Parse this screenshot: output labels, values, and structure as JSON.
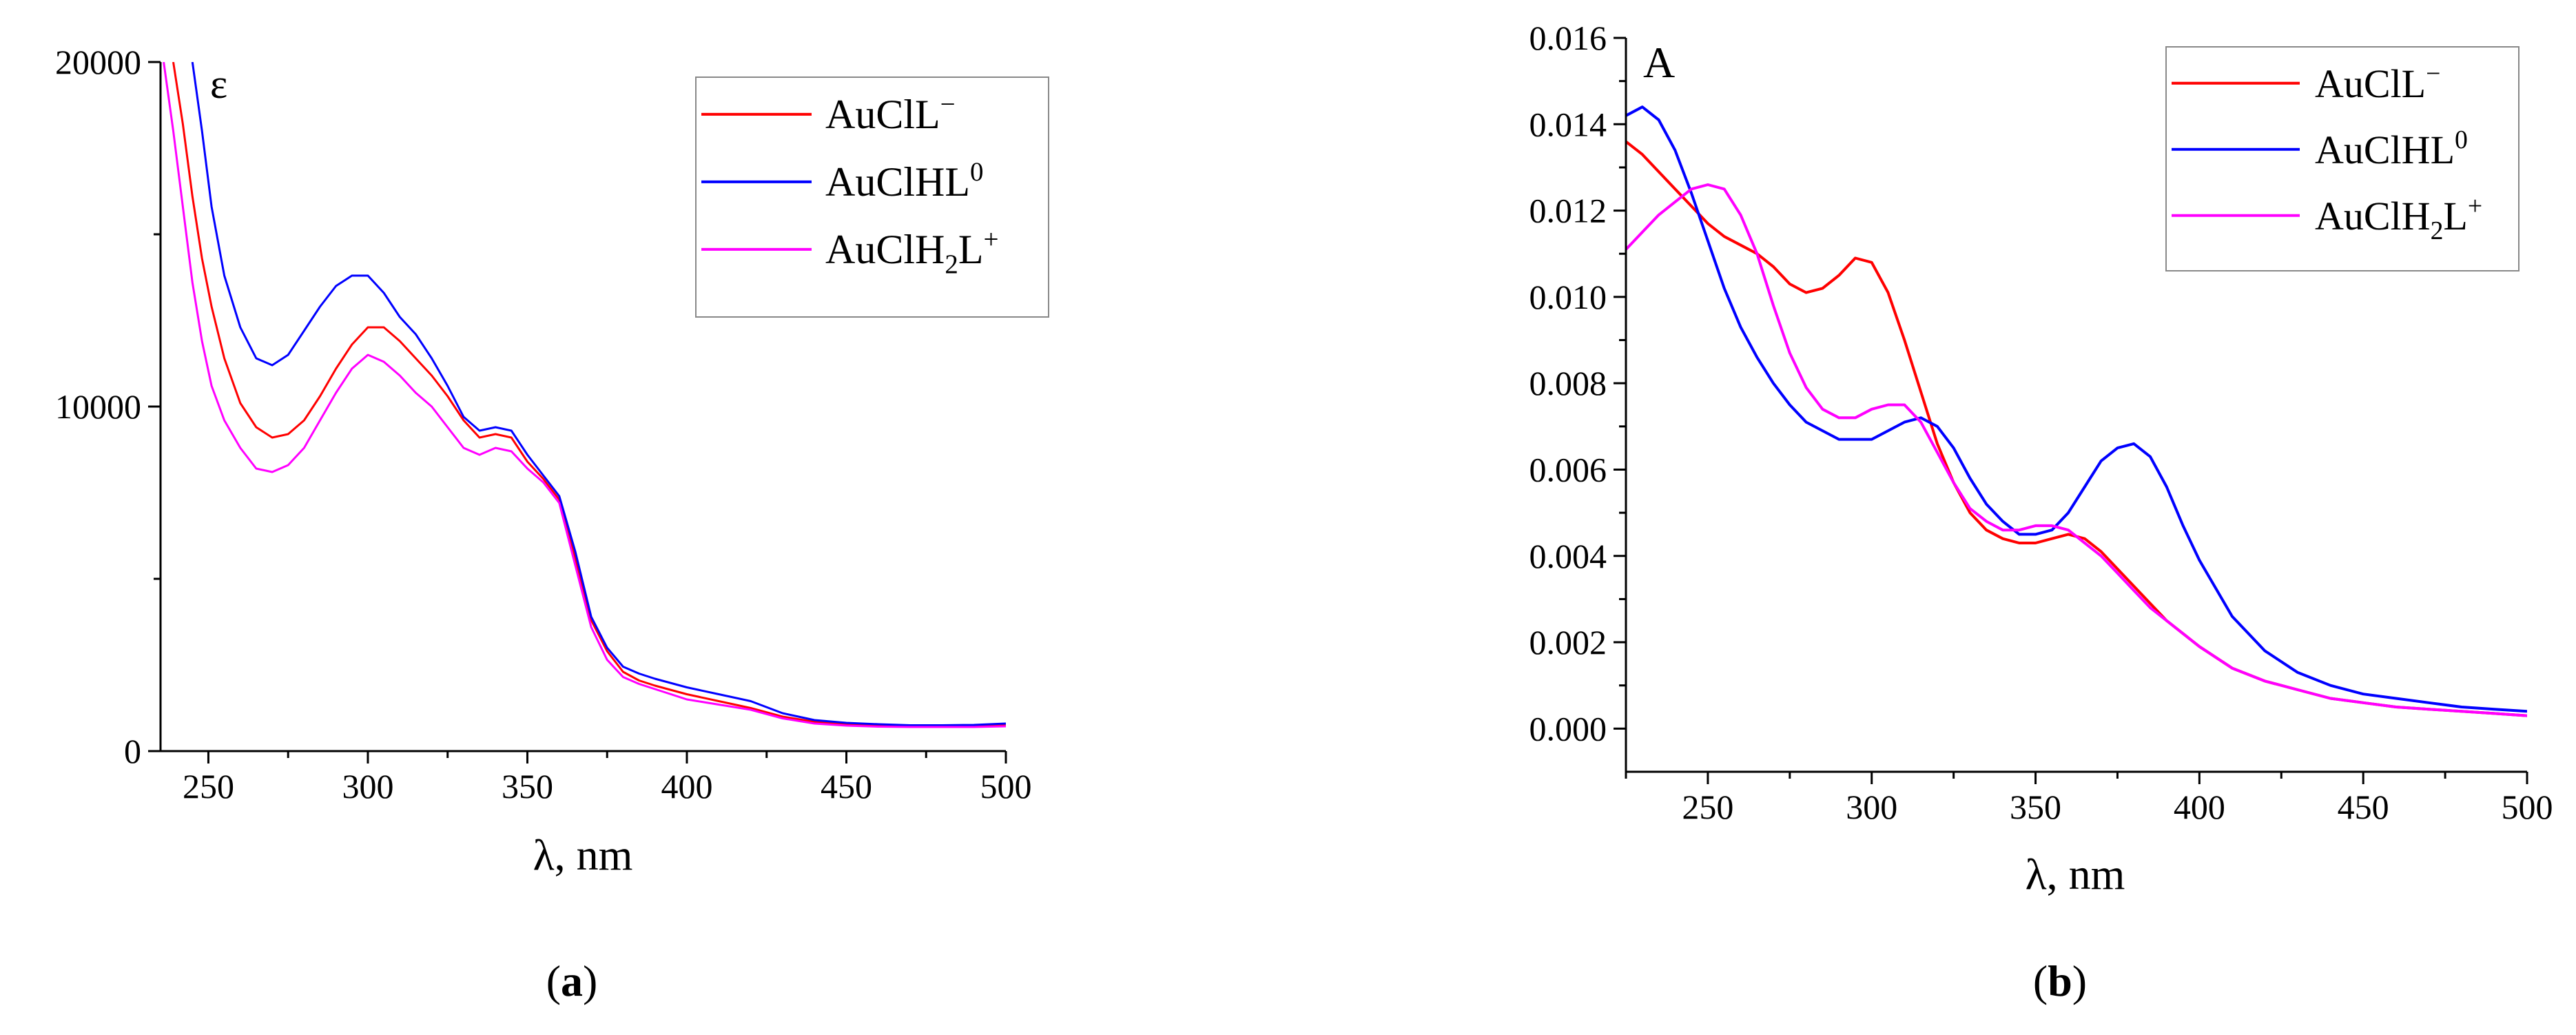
{
  "colors": {
    "red": "#ff0000",
    "blue": "#0000ff",
    "magenta": "#ff00ff"
  },
  "panel_labels": {
    "a": {
      "open": "(",
      "letter": "a",
      "close": ")"
    },
    "b": {
      "open": "(",
      "letter": "b",
      "close": ")"
    }
  },
  "chart_data": [
    {
      "id": "a",
      "type": "line",
      "ylabel": "ε",
      "xlabel": "λ, nm",
      "xlim": [
        235,
        500
      ],
      "ylim": [
        0,
        20000
      ],
      "xticks": [
        250,
        300,
        350,
        400,
        450,
        500
      ],
      "xtick_labels": [
        "250",
        "300",
        "350",
        "400",
        "450",
        "500"
      ],
      "yticks": [
        0,
        10000,
        20000
      ],
      "ytick_labels": [
        "0",
        "10000",
        "20000"
      ],
      "y_minor_ticks": [
        5000,
        15000
      ],
      "legend_position": "top-right",
      "series": [
        {
          "name": "AuClL⁻",
          "name_base": "AuClL",
          "name_sub": "",
          "name_end": "",
          "name_sup": "−",
          "color": "#ff0000",
          "x": [
            239,
            242,
            245,
            248,
            251,
            255,
            260,
            265,
            270,
            275,
            280,
            285,
            290,
            295,
            300,
            305,
            310,
            315,
            320,
            325,
            330,
            335,
            340,
            345,
            350,
            355,
            360,
            365,
            370,
            375,
            380,
            385,
            390,
            400,
            410,
            420,
            430,
            440,
            450,
            460,
            470,
            480,
            490,
            500
          ],
          "y": [
            20000,
            18200,
            16100,
            14300,
            12900,
            11400,
            10100,
            9400,
            9100,
            9200,
            9600,
            10300,
            11100,
            11800,
            12300,
            12300,
            11900,
            11400,
            10900,
            10300,
            9600,
            9100,
            9200,
            9100,
            8400,
            7900,
            7300,
            5600,
            3800,
            2900,
            2300,
            2050,
            1900,
            1650,
            1450,
            1250,
            1000,
            850,
            780,
            750,
            730,
            730,
            730,
            750
          ]
        },
        {
          "name": "AuClHL⁰",
          "name_base": "AuClHL",
          "name_sub": "",
          "name_end": "",
          "name_sup": "0",
          "color": "#0000ff",
          "x": [
            245,
            248,
            251,
            255,
            260,
            265,
            270,
            275,
            280,
            285,
            290,
            295,
            300,
            305,
            310,
            315,
            320,
            325,
            330,
            335,
            340,
            345,
            350,
            355,
            360,
            365,
            370,
            375,
            380,
            385,
            390,
            400,
            410,
            420,
            430,
            440,
            450,
            460,
            470,
            480,
            490,
            500
          ],
          "y": [
            20000,
            18000,
            15800,
            13800,
            12300,
            11400,
            11200,
            11500,
            12200,
            12900,
            13500,
            13800,
            13800,
            13300,
            12600,
            12100,
            11400,
            10600,
            9700,
            9300,
            9400,
            9300,
            8600,
            8000,
            7400,
            5800,
            3900,
            3000,
            2450,
            2250,
            2100,
            1850,
            1650,
            1450,
            1100,
            900,
            820,
            780,
            750,
            750,
            760,
            800
          ]
        },
        {
          "name": "AuClH₂L⁺",
          "name_base": "AuClH",
          "name_sub": "2",
          "name_end": "L",
          "name_sup": "+",
          "color": "#ff00ff",
          "x": [
            236,
            239,
            242,
            245,
            248,
            251,
            255,
            260,
            265,
            270,
            275,
            280,
            285,
            290,
            295,
            300,
            305,
            310,
            315,
            320,
            325,
            330,
            335,
            340,
            345,
            350,
            355,
            360,
            365,
            370,
            375,
            380,
            385,
            390,
            400,
            410,
            420,
            430,
            440,
            450,
            460,
            470,
            480,
            490,
            500
          ],
          "y": [
            20000,
            18000,
            15800,
            13600,
            11900,
            10600,
            9600,
            8800,
            8200,
            8100,
            8300,
            8800,
            9600,
            10400,
            11100,
            11500,
            11300,
            10900,
            10400,
            10000,
            9400,
            8800,
            8600,
            8800,
            8700,
            8200,
            7800,
            7200,
            5400,
            3600,
            2650,
            2150,
            1950,
            1800,
            1500,
            1350,
            1200,
            950,
            800,
            740,
            710,
            700,
            700,
            700,
            720
          ]
        }
      ]
    },
    {
      "id": "b",
      "type": "line",
      "ylabel": "A",
      "xlabel": "λ, nm",
      "xlim": [
        225,
        500
      ],
      "ylim": [
        -0.001,
        0.016
      ],
      "xticks": [
        250,
        300,
        350,
        400,
        450,
        500
      ],
      "xtick_labels": [
        "250",
        "300",
        "350",
        "400",
        "450",
        "500"
      ],
      "yticks": [
        0,
        0.002,
        0.004,
        0.006,
        0.008,
        0.01,
        0.012,
        0.014,
        0.016
      ],
      "ytick_labels": [
        "0.000",
        "0.002",
        "0.004",
        "0.006",
        "0.008",
        "0.010",
        "0.012",
        "0.014",
        "0.016"
      ],
      "legend_position": "top-right",
      "series": [
        {
          "name": "AuClL⁻",
          "name_base": "AuClL",
          "name_sub": "",
          "name_end": "",
          "name_sup": "−",
          "color": "#ff0000",
          "x": [
            225,
            230,
            235,
            240,
            245,
            250,
            255,
            260,
            265,
            270,
            275,
            280,
            285,
            290,
            295,
            300,
            305,
            310,
            315,
            320,
            325,
            330,
            335,
            340,
            345,
            350,
            355,
            360,
            365,
            370,
            375,
            380,
            385,
            390,
            400,
            410,
            420,
            430,
            440,
            450,
            460,
            470,
            480,
            490,
            500
          ],
          "y": [
            0.0136,
            0.0133,
            0.0129,
            0.0125,
            0.0121,
            0.0117,
            0.0114,
            0.0112,
            0.011,
            0.0107,
            0.0103,
            0.0101,
            0.0102,
            0.0105,
            0.0109,
            0.0108,
            0.0101,
            0.009,
            0.0078,
            0.0066,
            0.0057,
            0.005,
            0.0046,
            0.0044,
            0.0043,
            0.0043,
            0.0044,
            0.0045,
            0.0044,
            0.0041,
            0.0037,
            0.0033,
            0.0029,
            0.0025,
            0.0019,
            0.0014,
            0.0011,
            0.0009,
            0.0007,
            0.0006,
            0.0005,
            0.00045,
            0.0004,
            0.00035,
            0.0003
          ]
        },
        {
          "name": "AuClHL⁰",
          "name_base": "AuClHL",
          "name_sub": "",
          "name_end": "",
          "name_sup": "0",
          "color": "#0000ff",
          "x": [
            225,
            230,
            235,
            240,
            245,
            250,
            255,
            260,
            265,
            270,
            275,
            280,
            285,
            290,
            295,
            300,
            305,
            310,
            315,
            320,
            325,
            330,
            335,
            340,
            345,
            350,
            355,
            360,
            365,
            370,
            375,
            380,
            385,
            390,
            395,
            400,
            410,
            420,
            430,
            440,
            450,
            460,
            470,
            480,
            490,
            500
          ],
          "y": [
            0.0142,
            0.0144,
            0.0141,
            0.0134,
            0.0124,
            0.0113,
            0.0102,
            0.0093,
            0.0086,
            0.008,
            0.0075,
            0.0071,
            0.0069,
            0.0067,
            0.0067,
            0.0067,
            0.0069,
            0.0071,
            0.0072,
            0.007,
            0.0065,
            0.0058,
            0.0052,
            0.0048,
            0.0045,
            0.0045,
            0.0046,
            0.005,
            0.0056,
            0.0062,
            0.0065,
            0.0066,
            0.0063,
            0.0056,
            0.0047,
            0.0039,
            0.0026,
            0.0018,
            0.0013,
            0.001,
            0.0008,
            0.0007,
            0.0006,
            0.0005,
            0.00045,
            0.0004
          ]
        },
        {
          "name": "AuClH₂L⁺",
          "name_base": "AuClH",
          "name_sub": "2",
          "name_end": "L",
          "name_sup": "+",
          "color": "#ff00ff",
          "x": [
            225,
            230,
            235,
            240,
            245,
            250,
            255,
            260,
            265,
            270,
            275,
            280,
            285,
            290,
            295,
            300,
            305,
            310,
            315,
            320,
            325,
            330,
            335,
            340,
            345,
            350,
            355,
            360,
            365,
            370,
            375,
            380,
            385,
            390,
            400,
            410,
            420,
            430,
            440,
            450,
            460,
            470,
            480,
            490,
            500
          ],
          "y": [
            0.0111,
            0.0115,
            0.0119,
            0.0122,
            0.0125,
            0.0126,
            0.0125,
            0.0119,
            0.011,
            0.0098,
            0.0087,
            0.0079,
            0.0074,
            0.0072,
            0.0072,
            0.0074,
            0.0075,
            0.0075,
            0.0071,
            0.0064,
            0.0057,
            0.0051,
            0.0048,
            0.0046,
            0.0046,
            0.0047,
            0.0047,
            0.0046,
            0.0043,
            0.004,
            0.0036,
            0.0032,
            0.0028,
            0.0025,
            0.0019,
            0.0014,
            0.0011,
            0.0009,
            0.0007,
            0.0006,
            0.0005,
            0.00045,
            0.0004,
            0.00035,
            0.0003
          ]
        }
      ]
    }
  ]
}
